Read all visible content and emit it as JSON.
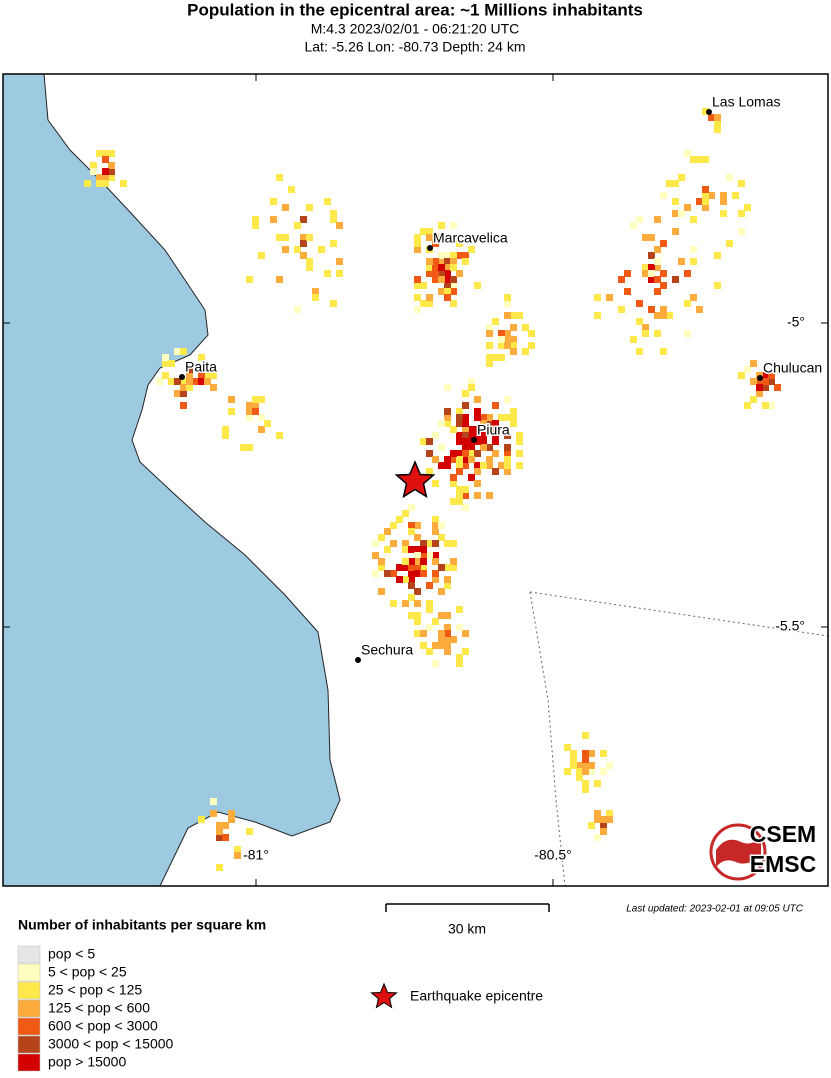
{
  "header": {
    "title": "Population in the epicentral area: ~1 Millions inhabitants",
    "line1": "M:4.3 2023/02/01 - 06:21:20 UTC",
    "line2": "Lat: -5.26 Lon: -80.73 Depth: 24 km"
  },
  "map": {
    "cities": [
      {
        "label": "Las Lomas"
      },
      {
        "label": "Marcavelica"
      },
      {
        "label": "Paita"
      },
      {
        "label": "Chulucan"
      },
      {
        "label": "Piura"
      },
      {
        "label": "Sechura"
      }
    ],
    "lon_labels": [
      "-81°",
      "-80.5°"
    ],
    "lat_labels": [
      "-5°",
      "-5.5°"
    ],
    "sea_color": "#9ecae1"
  },
  "logo": {
    "top": "CSEM",
    "bottom": "EMSC"
  },
  "scale": {
    "label": "30 km"
  },
  "updated": "Last updated: 2023-02-01 at 09:05 UTC",
  "legend": {
    "title": "Number of inhabitants per square km",
    "items": [
      {
        "label": "pop < 5",
        "color": "#e6e6e6"
      },
      {
        "label": "5 < pop < 25",
        "color": "#ffffbf"
      },
      {
        "label": "25 < pop < 125",
        "color": "#fee84a"
      },
      {
        "label": "125 < pop < 600",
        "color": "#fdab3c"
      },
      {
        "label": "600 < pop < 3000",
        "color": "#f05a14"
      },
      {
        "label": "3000 < pop < 15000",
        "color": "#b6441a"
      },
      {
        "label": "pop > 15000",
        "color": "#d40000"
      }
    ],
    "epicentre": "Earthquake epicentre"
  }
}
